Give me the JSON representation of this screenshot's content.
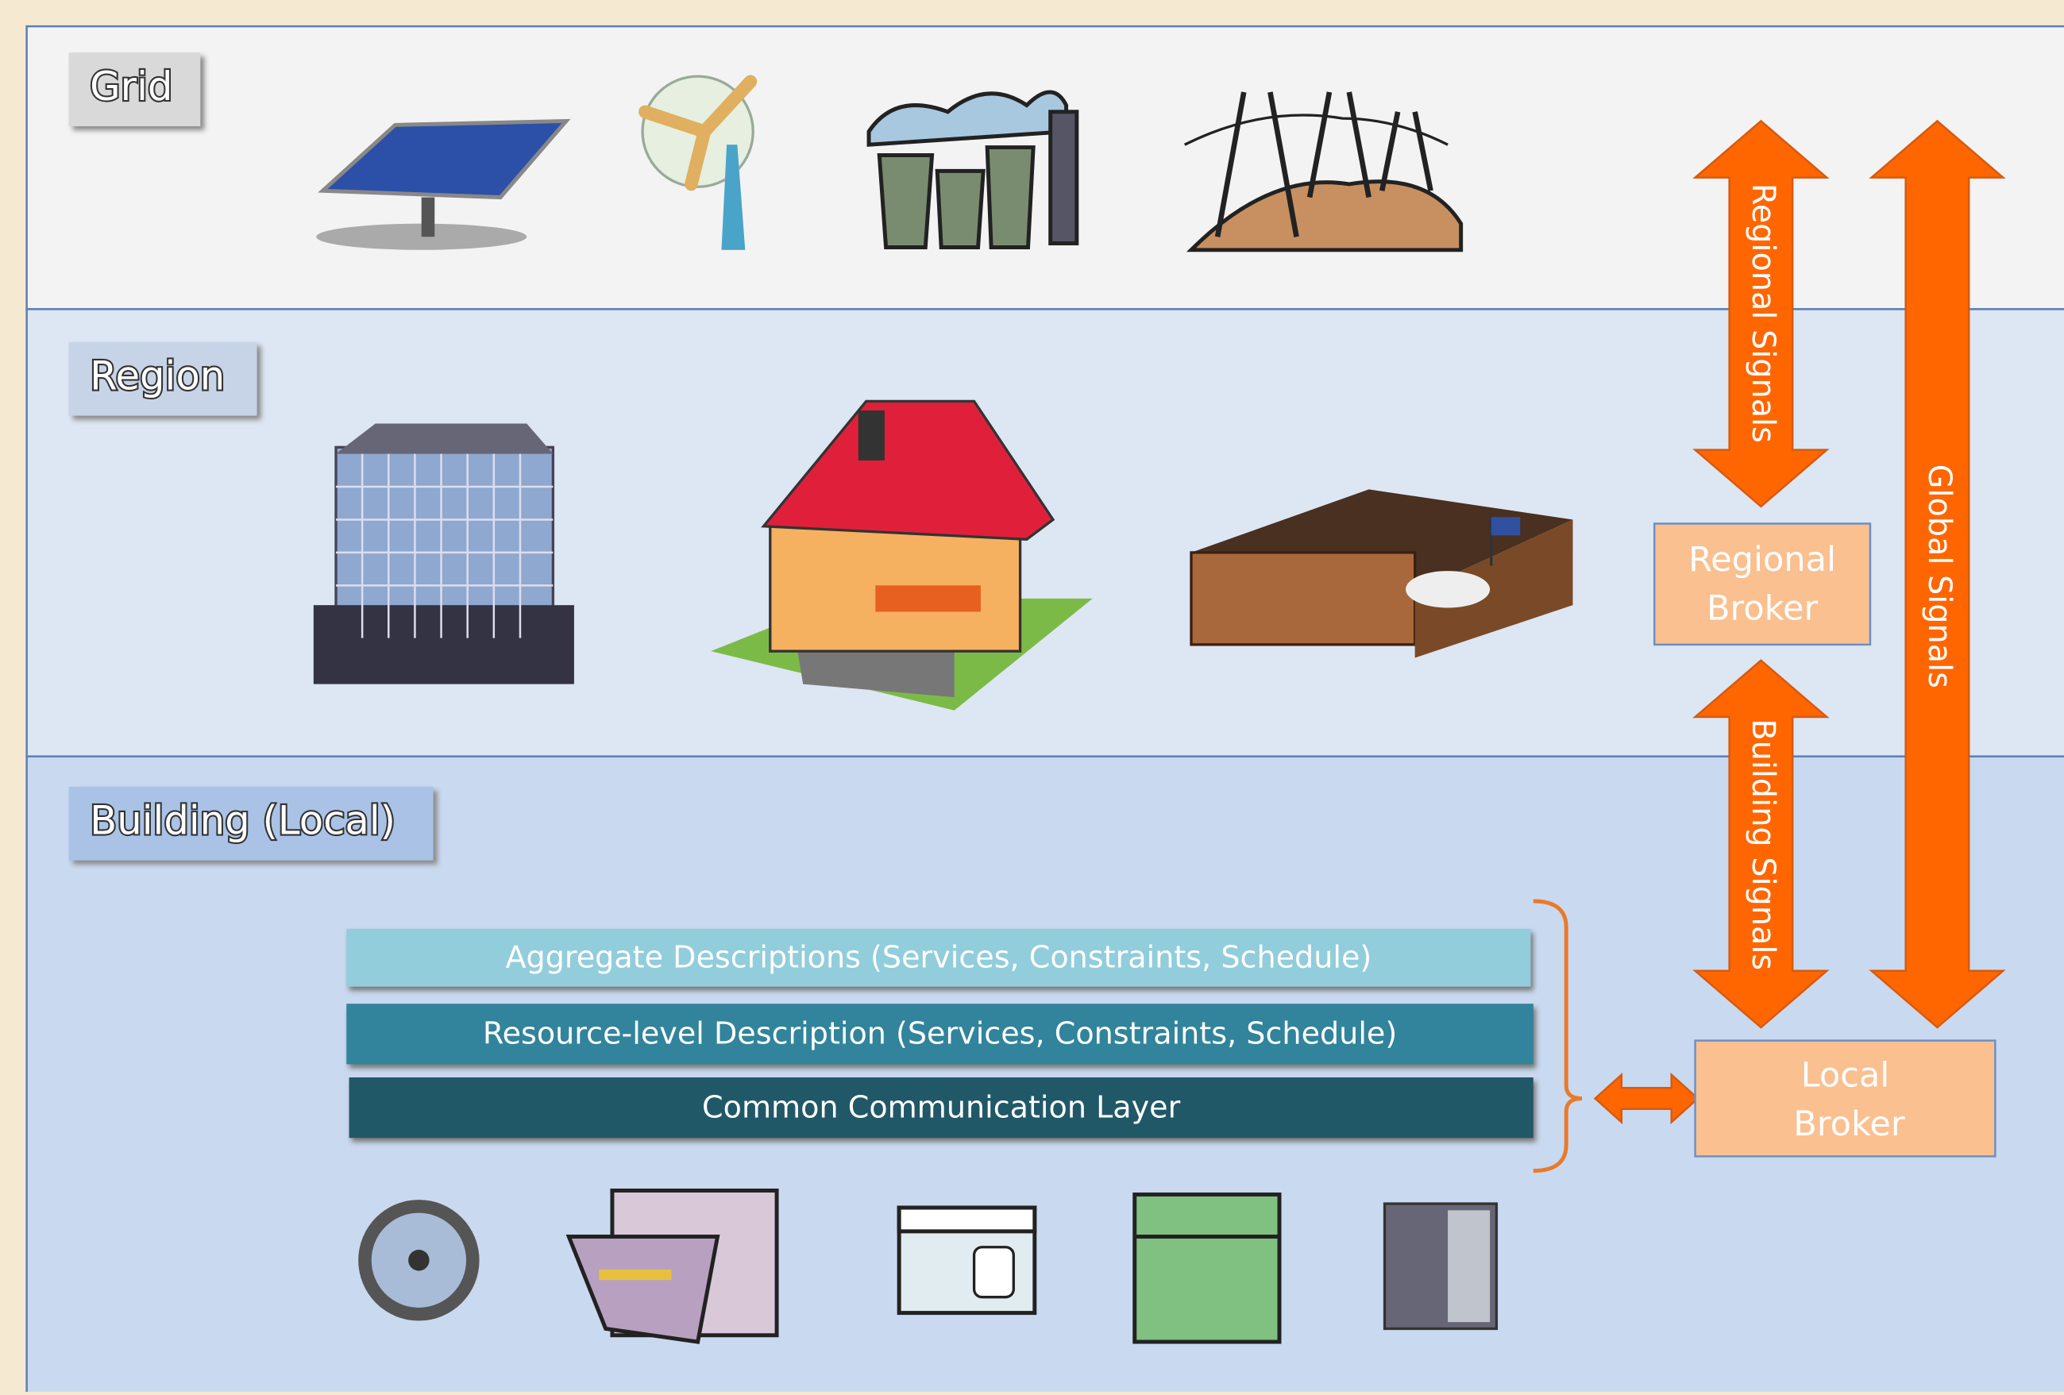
{
  "layers": [
    {
      "label": "Grid"
    },
    {
      "label": "Region"
    },
    {
      "label": "Building (Local)"
    }
  ],
  "signals": [
    {
      "label": "Regional Signals"
    },
    {
      "label": "Global Signals"
    },
    {
      "label": "Building Signals"
    }
  ],
  "brokers": [
    {
      "lines": [
        "Regional",
        "Broker"
      ]
    },
    {
      "lines": [
        "Local",
        "Broker"
      ]
    }
  ],
  "stack": [
    "Aggregate Descriptions (Services, Constraints, Schedule)",
    "Resource-level Description (Services, Constraints, Schedule)",
    "Common Communication Layer"
  ]
}
